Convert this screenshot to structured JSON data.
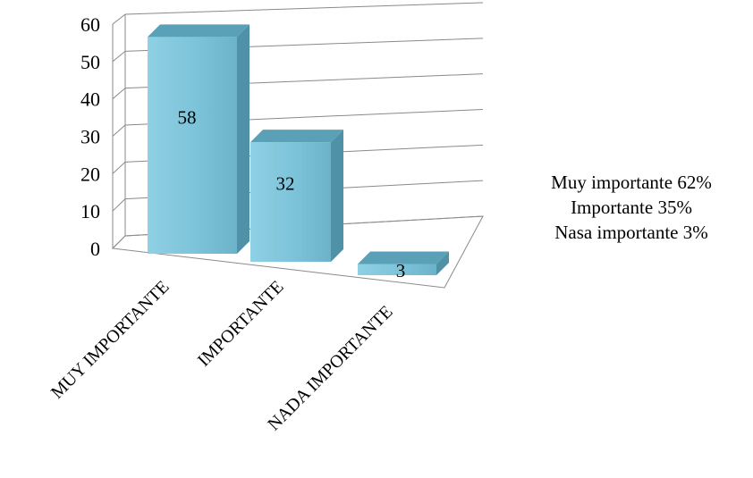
{
  "chart_data": {
    "type": "bar",
    "categories": [
      "MUY IMPORTANTE",
      "IMPORTANTE",
      "NADA IMPORTANTE"
    ],
    "values": [
      58,
      32,
      3
    ],
    "data_labels": [
      "58",
      "32",
      "3"
    ],
    "ylim": [
      0,
      60
    ],
    "yticks": [
      "0",
      "10",
      "20",
      "30",
      "40",
      "50",
      "60"
    ],
    "grid": true,
    "title": "",
    "xlabel": "",
    "ylabel": "",
    "bar_color": "#6fb3c9",
    "annotation_lines": [
      "Muy importante  62%",
      "Importante  35%",
      "Nasa importante  3%"
    ]
  }
}
